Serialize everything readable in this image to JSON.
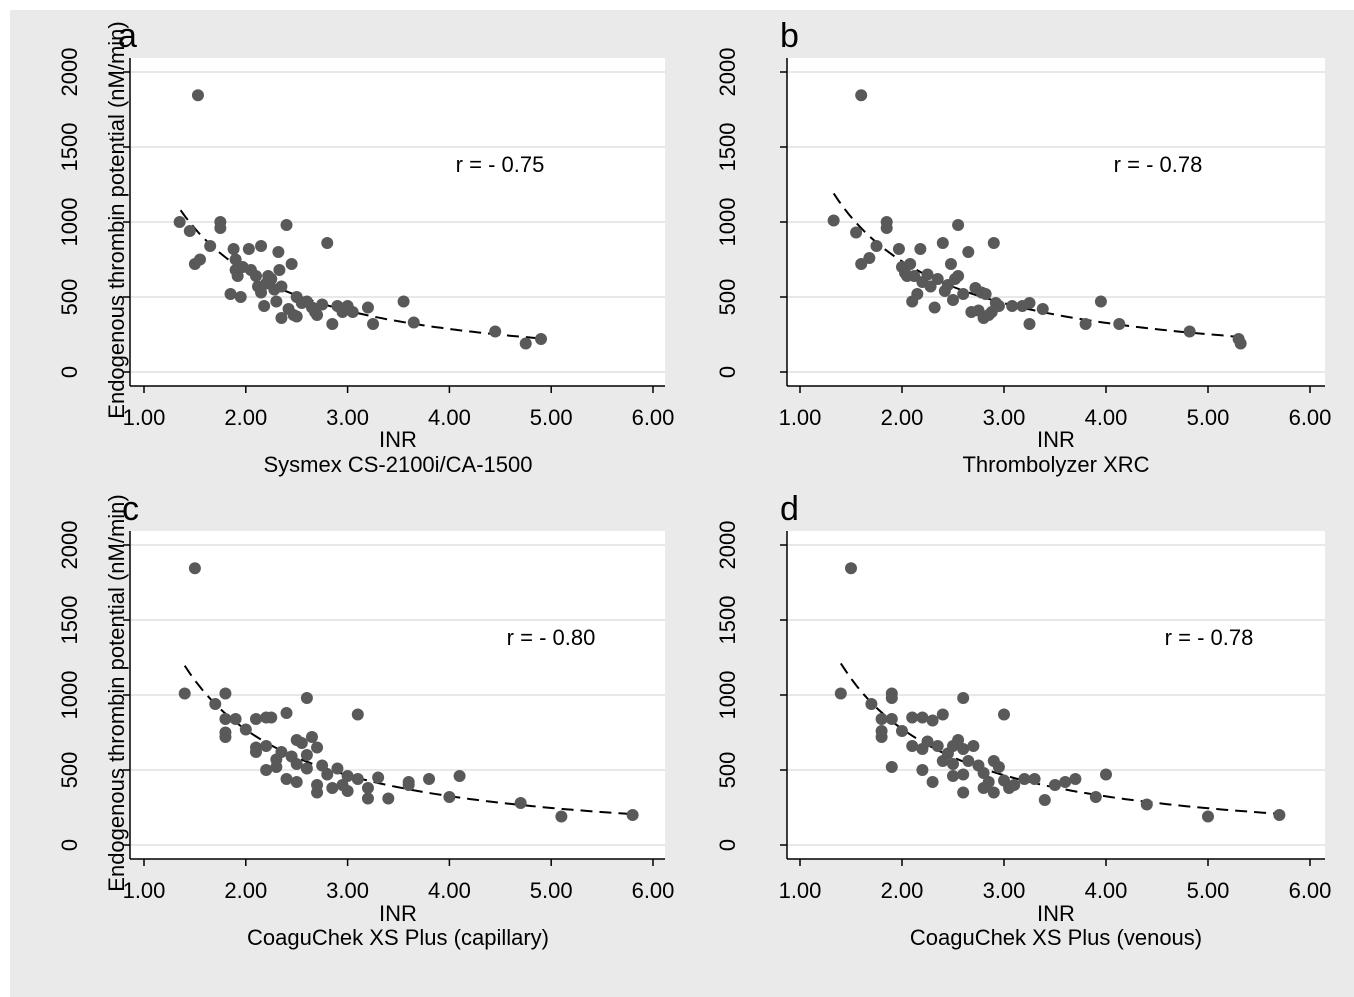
{
  "figure": {
    "background_color": "#eaeaea",
    "plot_background_color": "#ffffff",
    "marker_color": "#595959",
    "gridline_color": "#e8e8e8",
    "fit_line_style": "dashed",
    "shared_ylabel": "Endogenous thrombin potential (nM/min)",
    "shared_xlabel": "INR"
  },
  "chart_data": [
    {
      "panel": "a",
      "type": "scatter",
      "subtitle": "Sysmex CS-2100i/CA-1500",
      "xlabel": "INR",
      "ylabel": "Endogenous thrombin potential (nM/min)",
      "annotation": "r = - 0.75",
      "xlim": [
        1.0,
        6.0
      ],
      "ylim": [
        0,
        2000
      ],
      "xticks": [
        "1.00",
        "2.00",
        "3.00",
        "4.00",
        "5.00",
        "6.00"
      ],
      "yticks": [
        "0",
        "500",
        "1000",
        "1500",
        "2000"
      ],
      "grid": "horizontal",
      "fit_x_range": [
        1.36,
        4.95
      ],
      "points": [
        [
          1.53,
          1845
        ],
        [
          1.35,
          1000
        ],
        [
          1.45,
          940
        ],
        [
          1.5,
          720
        ],
        [
          1.55,
          750
        ],
        [
          1.65,
          840
        ],
        [
          1.75,
          1000
        ],
        [
          1.75,
          960
        ],
        [
          1.85,
          520
        ],
        [
          1.88,
          820
        ],
        [
          1.9,
          680
        ],
        [
          1.9,
          750
        ],
        [
          1.92,
          640
        ],
        [
          1.95,
          500
        ],
        [
          1.97,
          700
        ],
        [
          2.03,
          820
        ],
        [
          2.05,
          680
        ],
        [
          2.1,
          640
        ],
        [
          2.12,
          570
        ],
        [
          2.15,
          530
        ],
        [
          2.15,
          840
        ],
        [
          2.18,
          440
        ],
        [
          2.2,
          590
        ],
        [
          2.22,
          640
        ],
        [
          2.25,
          620
        ],
        [
          2.28,
          550
        ],
        [
          2.3,
          470
        ],
        [
          2.32,
          800
        ],
        [
          2.33,
          680
        ],
        [
          2.35,
          570
        ],
        [
          2.35,
          360
        ],
        [
          2.4,
          980
        ],
        [
          2.42,
          420
        ],
        [
          2.45,
          720
        ],
        [
          2.47,
          380
        ],
        [
          2.5,
          370
        ],
        [
          2.5,
          500
        ],
        [
          2.55,
          460
        ],
        [
          2.6,
          470
        ],
        [
          2.65,
          430
        ],
        [
          2.68,
          400
        ],
        [
          2.7,
          380
        ],
        [
          2.75,
          450
        ],
        [
          2.8,
          860
        ],
        [
          2.85,
          320
        ],
        [
          2.9,
          440
        ],
        [
          2.95,
          400
        ],
        [
          3.0,
          440
        ],
        [
          3.05,
          400
        ],
        [
          3.2,
          430
        ],
        [
          3.25,
          320
        ],
        [
          3.55,
          470
        ],
        [
          3.65,
          330
        ],
        [
          4.45,
          270
        ],
        [
          4.75,
          190
        ],
        [
          4.9,
          220
        ]
      ]
    },
    {
      "panel": "b",
      "type": "scatter",
      "subtitle": "Thrombolyzer XRC",
      "xlabel": "INR",
      "ylabel": "",
      "annotation": "r = - 0.78",
      "xlim": [
        1.0,
        6.0
      ],
      "ylim": [
        0,
        2000
      ],
      "xticks": [
        "1.00",
        "2.00",
        "3.00",
        "4.00",
        "5.00",
        "6.00"
      ],
      "yticks": [
        "0",
        "500",
        "1000",
        "1500",
        "2000"
      ],
      "grid": "horizontal",
      "fit_x_range": [
        1.33,
        5.33
      ],
      "points": [
        [
          1.6,
          1845
        ],
        [
          1.33,
          1010
        ],
        [
          1.55,
          930
        ],
        [
          1.6,
          720
        ],
        [
          1.68,
          760
        ],
        [
          1.75,
          840
        ],
        [
          1.85,
          1000
        ],
        [
          1.85,
          960
        ],
        [
          1.97,
          820
        ],
        [
          2.0,
          700
        ],
        [
          2.03,
          660
        ],
        [
          2.05,
          640
        ],
        [
          2.08,
          720
        ],
        [
          2.1,
          470
        ],
        [
          2.12,
          640
        ],
        [
          2.15,
          520
        ],
        [
          2.18,
          820
        ],
        [
          2.2,
          600
        ],
        [
          2.25,
          650
        ],
        [
          2.28,
          570
        ],
        [
          2.32,
          430
        ],
        [
          2.35,
          620
        ],
        [
          2.4,
          860
        ],
        [
          2.42,
          540
        ],
        [
          2.45,
          580
        ],
        [
          2.48,
          720
        ],
        [
          2.5,
          480
        ],
        [
          2.52,
          620
        ],
        [
          2.55,
          640
        ],
        [
          2.55,
          980
        ],
        [
          2.6,
          520
        ],
        [
          2.65,
          800
        ],
        [
          2.68,
          400
        ],
        [
          2.72,
          560
        ],
        [
          2.75,
          410
        ],
        [
          2.78,
          530
        ],
        [
          2.8,
          360
        ],
        [
          2.82,
          520
        ],
        [
          2.85,
          380
        ],
        [
          2.88,
          400
        ],
        [
          2.9,
          860
        ],
        [
          2.92,
          460
        ],
        [
          2.95,
          440
        ],
        [
          3.08,
          440
        ],
        [
          3.18,
          440
        ],
        [
          3.25,
          460
        ],
        [
          3.25,
          320
        ],
        [
          3.38,
          420
        ],
        [
          3.8,
          320
        ],
        [
          3.95,
          470
        ],
        [
          4.13,
          320
        ],
        [
          4.82,
          270
        ],
        [
          5.3,
          220
        ],
        [
          5.32,
          190
        ]
      ]
    },
    {
      "panel": "c",
      "type": "scatter",
      "subtitle": "CoaguChek XS Plus (capillary)",
      "xlabel": "INR",
      "ylabel": "Endogenous thrombin potential (nM/min)",
      "annotation": "r = - 0.80",
      "xlim": [
        1.0,
        6.0
      ],
      "ylim": [
        0,
        2000
      ],
      "xticks": [
        "1.00",
        "2.00",
        "3.00",
        "4.00",
        "5.00",
        "6.00"
      ],
      "yticks": [
        "0",
        "500",
        "1000",
        "1500",
        "2000"
      ],
      "grid": "horizontal",
      "fit_x_range": [
        1.4,
        5.8
      ],
      "points": [
        [
          1.5,
          1845
        ],
        [
          1.4,
          1010
        ],
        [
          1.7,
          940
        ],
        [
          1.8,
          1010
        ],
        [
          1.8,
          840
        ],
        [
          1.8,
          750
        ],
        [
          1.8,
          720
        ],
        [
          1.9,
          840
        ],
        [
          2.0,
          770
        ],
        [
          2.1,
          840
        ],
        [
          2.1,
          650
        ],
        [
          2.1,
          620
        ],
        [
          2.2,
          850
        ],
        [
          2.2,
          660
        ],
        [
          2.2,
          500
        ],
        [
          2.25,
          850
        ],
        [
          2.3,
          570
        ],
        [
          2.3,
          520
        ],
        [
          2.35,
          620
        ],
        [
          2.4,
          880
        ],
        [
          2.4,
          440
        ],
        [
          2.45,
          590
        ],
        [
          2.5,
          700
        ],
        [
          2.5,
          540
        ],
        [
          2.5,
          420
        ],
        [
          2.55,
          680
        ],
        [
          2.6,
          980
        ],
        [
          2.6,
          600
        ],
        [
          2.6,
          510
        ],
        [
          2.65,
          720
        ],
        [
          2.7,
          650
        ],
        [
          2.7,
          400
        ],
        [
          2.7,
          350
        ],
        [
          2.75,
          530
        ],
        [
          2.8,
          470
        ],
        [
          2.85,
          380
        ],
        [
          2.9,
          510
        ],
        [
          2.95,
          400
        ],
        [
          3.0,
          460
        ],
        [
          3.0,
          360
        ],
        [
          3.1,
          870
        ],
        [
          3.1,
          440
        ],
        [
          3.2,
          380
        ],
        [
          3.2,
          310
        ],
        [
          3.3,
          450
        ],
        [
          3.4,
          310
        ],
        [
          3.6,
          420
        ],
        [
          3.6,
          400
        ],
        [
          3.8,
          440
        ],
        [
          4.0,
          320
        ],
        [
          4.1,
          460
        ],
        [
          4.7,
          280
        ],
        [
          5.1,
          190
        ],
        [
          5.8,
          200
        ]
      ]
    },
    {
      "panel": "d",
      "type": "scatter",
      "subtitle": "CoaguChek XS Plus (venous)",
      "xlabel": "INR",
      "ylabel": "",
      "annotation": "r = - 0.78",
      "xlim": [
        1.0,
        6.0
      ],
      "ylim": [
        0,
        2000
      ],
      "xticks": [
        "1.00",
        "2.00",
        "3.00",
        "4.00",
        "5.00",
        "6.00"
      ],
      "yticks": [
        "0",
        "500",
        "1000",
        "1500",
        "2000"
      ],
      "grid": "horizontal",
      "fit_x_range": [
        1.4,
        5.7
      ],
      "points": [
        [
          1.5,
          1845
        ],
        [
          1.4,
          1010
        ],
        [
          1.7,
          940
        ],
        [
          1.8,
          840
        ],
        [
          1.8,
          720
        ],
        [
          1.8,
          760
        ],
        [
          1.9,
          1010
        ],
        [
          1.9,
          980
        ],
        [
          1.9,
          840
        ],
        [
          1.9,
          520
        ],
        [
          2.0,
          760
        ],
        [
          2.1,
          850
        ],
        [
          2.1,
          660
        ],
        [
          2.2,
          850
        ],
        [
          2.2,
          640
        ],
        [
          2.2,
          500
        ],
        [
          2.25,
          690
        ],
        [
          2.3,
          830
        ],
        [
          2.3,
          420
        ],
        [
          2.35,
          660
        ],
        [
          2.4,
          870
        ],
        [
          2.4,
          560
        ],
        [
          2.45,
          610
        ],
        [
          2.5,
          660
        ],
        [
          2.5,
          540
        ],
        [
          2.5,
          460
        ],
        [
          2.55,
          700
        ],
        [
          2.6,
          980
        ],
        [
          2.6,
          640
        ],
        [
          2.6,
          470
        ],
        [
          2.6,
          350
        ],
        [
          2.65,
          560
        ],
        [
          2.7,
          660
        ],
        [
          2.75,
          530
        ],
        [
          2.8,
          480
        ],
        [
          2.8,
          380
        ],
        [
          2.85,
          420
        ],
        [
          2.9,
          560
        ],
        [
          2.9,
          350
        ],
        [
          2.95,
          520
        ],
        [
          3.0,
          870
        ],
        [
          3.0,
          430
        ],
        [
          3.05,
          380
        ],
        [
          3.1,
          400
        ],
        [
          3.2,
          440
        ],
        [
          3.3,
          440
        ],
        [
          3.4,
          300
        ],
        [
          3.5,
          400
        ],
        [
          3.6,
          420
        ],
        [
          3.7,
          440
        ],
        [
          3.9,
          320
        ],
        [
          4.0,
          470
        ],
        [
          4.4,
          270
        ],
        [
          5.0,
          190
        ],
        [
          5.7,
          200
        ]
      ]
    }
  ]
}
